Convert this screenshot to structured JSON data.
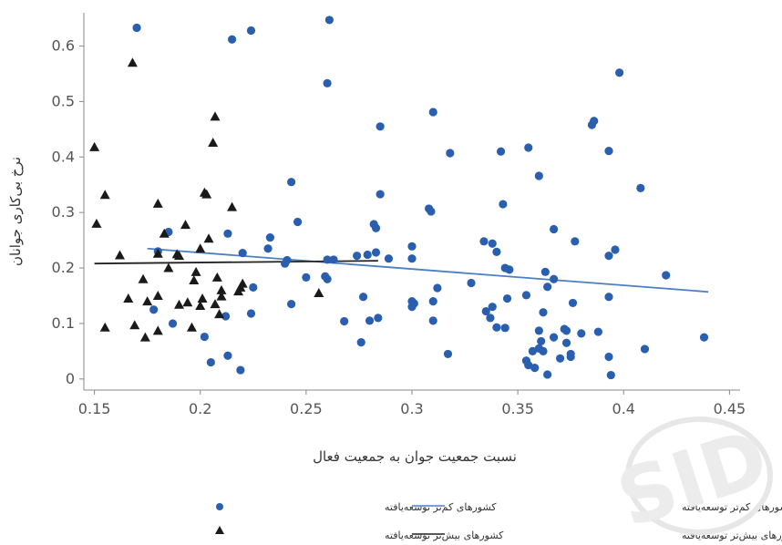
{
  "chart_data": {
    "type": "scatter",
    "xlabel": "نسبت جمعیت جوان به جمعیت فعال",
    "ylabel": "نرخ بی‌کاری جوانان",
    "xlim": [
      0.145,
      0.455
    ],
    "ylim": [
      -0.02,
      0.66
    ],
    "x_ticks": [
      0.15,
      0.2,
      0.25,
      0.3,
      0.35,
      0.4,
      0.45
    ],
    "x_tick_labels": [
      "0.15",
      "0.2",
      "0.25",
      "0.3",
      "0.35",
      "0.4",
      "0.45"
    ],
    "y_ticks": [
      0,
      0.1,
      0.2,
      0.3,
      0.4,
      0.5,
      0.6
    ],
    "y_tick_labels": [
      "0",
      "0.1",
      "0.2",
      "0.3",
      "0.4",
      "0.5",
      "0.6"
    ],
    "grid": false,
    "legend_position": "bottom",
    "colors": {
      "less_developed": "#2a5fb0",
      "more_developed": "#1a1a1a",
      "fit_less": "#4a7fc8",
      "fit_more": "#222222",
      "axis": "#888888"
    },
    "series": [
      {
        "name": "کشورهای کم‌تر توسعه‌یافته",
        "marker": "circle",
        "points": [
          [
            0.17,
            0.633
          ],
          [
            0.215,
            0.612
          ],
          [
            0.224,
            0.628
          ],
          [
            0.261,
            0.647
          ],
          [
            0.26,
            0.533
          ],
          [
            0.398,
            0.552
          ],
          [
            0.31,
            0.481
          ],
          [
            0.285,
            0.455
          ],
          [
            0.386,
            0.465
          ],
          [
            0.385,
            0.458
          ],
          [
            0.355,
            0.417
          ],
          [
            0.342,
            0.41
          ],
          [
            0.318,
            0.407
          ],
          [
            0.393,
            0.411
          ],
          [
            0.36,
            0.366
          ],
          [
            0.243,
            0.355
          ],
          [
            0.408,
            0.344
          ],
          [
            0.285,
            0.333
          ],
          [
            0.343,
            0.315
          ],
          [
            0.308,
            0.307
          ],
          [
            0.309,
            0.302
          ],
          [
            0.246,
            0.283
          ],
          [
            0.282,
            0.279
          ],
          [
            0.367,
            0.27
          ],
          [
            0.283,
            0.272
          ],
          [
            0.185,
            0.265
          ],
          [
            0.213,
            0.262
          ],
          [
            0.233,
            0.255
          ],
          [
            0.334,
            0.248
          ],
          [
            0.377,
            0.248
          ],
          [
            0.338,
            0.244
          ],
          [
            0.3,
            0.239
          ],
          [
            0.396,
            0.233
          ],
          [
            0.232,
            0.235
          ],
          [
            0.18,
            0.23
          ],
          [
            0.283,
            0.228
          ],
          [
            0.274,
            0.222
          ],
          [
            0.279,
            0.224
          ],
          [
            0.22,
            0.227
          ],
          [
            0.393,
            0.222
          ],
          [
            0.34,
            0.229
          ],
          [
            0.289,
            0.217
          ],
          [
            0.3,
            0.217
          ],
          [
            0.26,
            0.215
          ],
          [
            0.263,
            0.215
          ],
          [
            0.24,
            0.208
          ],
          [
            0.241,
            0.214
          ],
          [
            0.344,
            0.2
          ],
          [
            0.346,
            0.197
          ],
          [
            0.363,
            0.193
          ],
          [
            0.42,
            0.187
          ],
          [
            0.25,
            0.183
          ],
          [
            0.259,
            0.185
          ],
          [
            0.26,
            0.18
          ],
          [
            0.367,
            0.18
          ],
          [
            0.328,
            0.173
          ],
          [
            0.364,
            0.166
          ],
          [
            0.312,
            0.164
          ],
          [
            0.225,
            0.165
          ],
          [
            0.354,
            0.151
          ],
          [
            0.277,
            0.148
          ],
          [
            0.393,
            0.148
          ],
          [
            0.345,
            0.145
          ],
          [
            0.3,
            0.14
          ],
          [
            0.31,
            0.14
          ],
          [
            0.243,
            0.135
          ],
          [
            0.301,
            0.136
          ],
          [
            0.376,
            0.137
          ],
          [
            0.338,
            0.13
          ],
          [
            0.335,
            0.122
          ],
          [
            0.178,
            0.125
          ],
          [
            0.3,
            0.13
          ],
          [
            0.362,
            0.12
          ],
          [
            0.212,
            0.113
          ],
          [
            0.224,
            0.118
          ],
          [
            0.337,
            0.11
          ],
          [
            0.284,
            0.11
          ],
          [
            0.28,
            0.105
          ],
          [
            0.31,
            0.105
          ],
          [
            0.268,
            0.104
          ],
          [
            0.34,
            0.093
          ],
          [
            0.344,
            0.092
          ],
          [
            0.187,
            0.1
          ],
          [
            0.372,
            0.09
          ],
          [
            0.36,
            0.087
          ],
          [
            0.373,
            0.087
          ],
          [
            0.38,
            0.082
          ],
          [
            0.388,
            0.085
          ],
          [
            0.367,
            0.075
          ],
          [
            0.202,
            0.076
          ],
          [
            0.361,
            0.068
          ],
          [
            0.276,
            0.066
          ],
          [
            0.438,
            0.075
          ],
          [
            0.373,
            0.065
          ],
          [
            0.36,
            0.055
          ],
          [
            0.357,
            0.05
          ],
          [
            0.362,
            0.05
          ],
          [
            0.375,
            0.045
          ],
          [
            0.41,
            0.054
          ],
          [
            0.317,
            0.045
          ],
          [
            0.213,
            0.042
          ],
          [
            0.375,
            0.04
          ],
          [
            0.37,
            0.037
          ],
          [
            0.393,
            0.04
          ],
          [
            0.354,
            0.033
          ],
          [
            0.355,
            0.025
          ],
          [
            0.358,
            0.02
          ],
          [
            0.205,
            0.03
          ],
          [
            0.219,
            0.016
          ],
          [
            0.364,
            0.008
          ],
          [
            0.394,
            0.007
          ]
        ]
      },
      {
        "name": "کشورهای بیش‌تر توسعه‌یافته",
        "marker": "triangle",
        "points": [
          [
            0.168,
            0.57
          ],
          [
            0.207,
            0.473
          ],
          [
            0.206,
            0.426
          ],
          [
            0.15,
            0.418
          ],
          [
            0.202,
            0.336
          ],
          [
            0.203,
            0.333
          ],
          [
            0.155,
            0.332
          ],
          [
            0.18,
            0.316
          ],
          [
            0.215,
            0.31
          ],
          [
            0.151,
            0.28
          ],
          [
            0.193,
            0.278
          ],
          [
            0.183,
            0.262
          ],
          [
            0.204,
            0.253
          ],
          [
            0.18,
            0.226
          ],
          [
            0.2,
            0.235
          ],
          [
            0.189,
            0.225
          ],
          [
            0.19,
            0.222
          ],
          [
            0.162,
            0.223
          ],
          [
            0.185,
            0.2
          ],
          [
            0.198,
            0.193
          ],
          [
            0.173,
            0.18
          ],
          [
            0.197,
            0.178
          ],
          [
            0.208,
            0.183
          ],
          [
            0.21,
            0.16
          ],
          [
            0.22,
            0.172
          ],
          [
            0.219,
            0.165
          ],
          [
            0.218,
            0.158
          ],
          [
            0.256,
            0.155
          ],
          [
            0.18,
            0.15
          ],
          [
            0.21,
            0.149
          ],
          [
            0.201,
            0.145
          ],
          [
            0.166,
            0.145
          ],
          [
            0.175,
            0.14
          ],
          [
            0.194,
            0.138
          ],
          [
            0.19,
            0.134
          ],
          [
            0.2,
            0.132
          ],
          [
            0.207,
            0.135
          ],
          [
            0.209,
            0.117
          ],
          [
            0.169,
            0.097
          ],
          [
            0.155,
            0.093
          ],
          [
            0.196,
            0.093
          ],
          [
            0.18,
            0.087
          ],
          [
            0.174,
            0.075
          ]
        ]
      }
    ],
    "fit_lines": [
      {
        "name": "خط رگرسیون OLSکشورهای کم‌تر توسعه‌یافته",
        "x": [
          0.175,
          0.44
        ],
        "y": [
          0.235,
          0.157
        ]
      },
      {
        "name": "خط رگرسیون OLSکشورهای بیش‌تر توسعه‌یافته",
        "x": [
          0.15,
          0.284
        ],
        "y": [
          0.208,
          0.213
        ]
      }
    ]
  },
  "watermark": {
    "text": "SID"
  }
}
